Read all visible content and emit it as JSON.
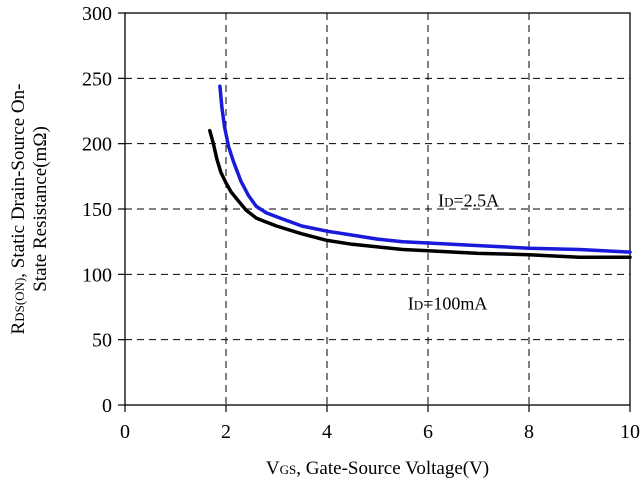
{
  "chart_data": {
    "type": "line",
    "xlim": [
      0,
      10
    ],
    "ylim": [
      0,
      300
    ],
    "x_ticks": [
      "0",
      "2",
      "4",
      "6",
      "8",
      "10"
    ],
    "y_ticks": [
      "0",
      "50",
      "100",
      "150",
      "200",
      "250",
      "300"
    ],
    "grid": true,
    "xlabel": {
      "main": "V",
      "sub": "GS",
      "rest": ", Gate-Source Voltage(V)"
    },
    "ylabel": {
      "line1_main": "R",
      "line1_sub": "DS(ON)",
      "line1_rest": ", Static Drain-Source On-",
      "line2": "State Resistance(mΩ)"
    },
    "series": [
      {
        "color": "#1a1adb",
        "x": [
          1.88,
          1.92,
          1.97,
          2.05,
          2.15,
          2.3,
          2.45,
          2.6,
          2.8,
          3.0,
          3.5,
          4.0,
          4.5,
          5.0,
          5.5,
          6.0,
          7.0,
          8.0,
          9.0,
          10.0
        ],
        "y": [
          244,
          227,
          213,
          198,
          186,
          171,
          160,
          152,
          147,
          144,
          137,
          133,
          130,
          127,
          125,
          124,
          122,
          120,
          119,
          117
        ]
      },
      {
        "color": "#000000",
        "x": [
          1.68,
          1.75,
          1.82,
          1.9,
          2.0,
          2.1,
          2.25,
          2.4,
          2.6,
          2.8,
          3.0,
          3.5,
          4.0,
          4.5,
          5.0,
          5.5,
          6.0,
          7.0,
          8.0,
          9.0,
          10.0
        ],
        "y": [
          210,
          200,
          188,
          178,
          170,
          163,
          156,
          149,
          143,
          140,
          137,
          131,
          126,
          123,
          121,
          119,
          118,
          116,
          115,
          113,
          113
        ]
      }
    ],
    "annotations": [
      {
        "main": "I",
        "sub": "D",
        "rest": "=2.5A",
        "x": 6.2,
        "y": 152
      },
      {
        "main": "I",
        "sub": "D",
        "rest": "=100mA",
        "x": 5.6,
        "y": 73
      }
    ]
  }
}
